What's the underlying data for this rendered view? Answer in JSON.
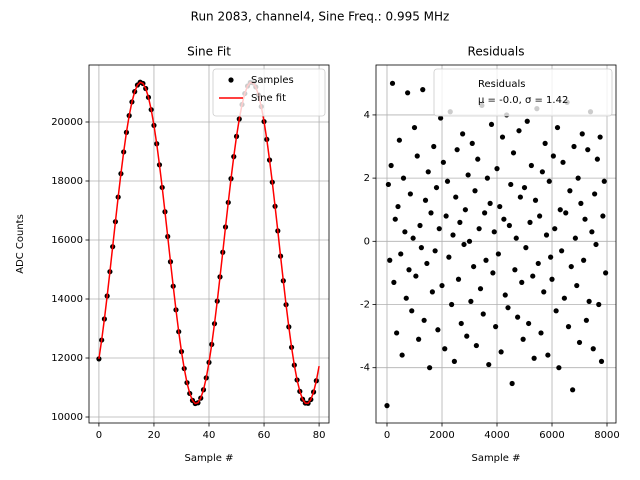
{
  "title": "Run 2083, channel4, Sine Freq.: 0.995 MHz",
  "chart_data": [
    {
      "type": "line",
      "title": "Sine Fit",
      "xlabel": "Sample #",
      "ylabel": "ADC Counts",
      "xlim": [
        -3.6,
        83.6
      ],
      "ylim": [
        9797,
        21932
      ],
      "xticks": [
        0,
        20,
        40,
        60,
        80
      ],
      "yticks": [
        10000,
        12000,
        14000,
        16000,
        18000,
        20000
      ],
      "grid": true,
      "legend": "upper right",
      "series": [
        {
          "name": "Samples",
          "color": "#000000",
          "style": "markers",
          "x": [
            0,
            1,
            2,
            3,
            4,
            5,
            6,
            7,
            8,
            9,
            10,
            11,
            12,
            13,
            14,
            15,
            16,
            17,
            18,
            19,
            20,
            21,
            22,
            23,
            24,
            25,
            26,
            27,
            28,
            29,
            30,
            31,
            32,
            33,
            34,
            35,
            36,
            37,
            38,
            39,
            40,
            41,
            42,
            43,
            44,
            45,
            46,
            47,
            48,
            49,
            50,
            51,
            52,
            53,
            54,
            55,
            56,
            57,
            58,
            59,
            60,
            61,
            62,
            63,
            64,
            65,
            66,
            67,
            68,
            69,
            70,
            71,
            72,
            73,
            74,
            75,
            76,
            77,
            78,
            79
          ],
          "values": [
            11970,
            12608,
            13323,
            14102,
            14925,
            15774,
            16621,
            17455,
            18249,
            18985,
            19648,
            20216,
            20680,
            21029,
            21253,
            21347,
            21306,
            21136,
            20836,
            20418,
            19886,
            19263,
            18549,
            17781,
            16957,
            16118,
            15262,
            14434,
            13633,
            12892,
            12216,
            11643,
            11164,
            10799,
            10564,
            10456,
            10483,
            10641,
            10924,
            11327,
            11851,
            12461,
            13164,
            13927,
            14750,
            15584,
            16440,
            17273,
            18080,
            18827,
            19513,
            20102,
            20592,
            20963,
            21219,
            21339,
            21328,
            21187,
            20914,
            20522,
            20015,
            19410,
            18712,
            17960,
            17143,
            16309,
            15453,
            14619,
            13807,
            13055,
            12363,
            11758,
            11257,
            10870,
            10603,
            10472,
            10466,
            10592,
            10848,
            11229
          ]
        },
        {
          "name": "Sine fit",
          "color": "#ff0000",
          "style": "line",
          "x": [
            0,
            1,
            2,
            3,
            4,
            5,
            6,
            7,
            8,
            9,
            10,
            11,
            12,
            13,
            14,
            15,
            16,
            17,
            18,
            19,
            20,
            21,
            22,
            23,
            24,
            25,
            26,
            27,
            28,
            29,
            30,
            31,
            32,
            33,
            34,
            35,
            36,
            37,
            38,
            39,
            40,
            41,
            42,
            43,
            44,
            45,
            46,
            47,
            48,
            49,
            50,
            51,
            52,
            53,
            54,
            55,
            56,
            57,
            58,
            59,
            60,
            61,
            62,
            63,
            64,
            65,
            66,
            67,
            68,
            69,
            70,
            71,
            72,
            73,
            74,
            75,
            76,
            77,
            78,
            79,
            80
          ],
          "values": [
            11970,
            12608,
            13323,
            14102,
            14925,
            15774,
            16621,
            17455,
            18249,
            18985,
            19648,
            20216,
            20680,
            21029,
            21253,
            21347,
            21306,
            21136,
            20836,
            20418,
            19886,
            19263,
            18549,
            17781,
            16957,
            16118,
            15262,
            14434,
            13633,
            12892,
            12216,
            11643,
            11164,
            10799,
            10564,
            10456,
            10483,
            10641,
            10924,
            11327,
            11851,
            12461,
            13164,
            13927,
            14750,
            15584,
            16440,
            17273,
            18080,
            18827,
            19513,
            20102,
            20592,
            20963,
            21219,
            21339,
            21328,
            21187,
            20914,
            20522,
            20015,
            19410,
            18712,
            17960,
            17143,
            16309,
            15453,
            14619,
            13807,
            13055,
            12363,
            11758,
            11257,
            10870,
            10603,
            10472,
            10466,
            10592,
            10848,
            11229,
            11725
          ]
        }
      ]
    },
    {
      "type": "scatter",
      "title": "Residuals",
      "xlabel": "Sample #",
      "xlim": [
        -400,
        8327
      ],
      "ylim": [
        -5.75,
        5.58
      ],
      "xticks": [
        0,
        2000,
        4000,
        6000,
        8000
      ],
      "yticks": [
        -4,
        -2,
        0,
        2,
        4
      ],
      "grid": true,
      "legend": "upper right",
      "legend_note": "μ = -0.0, σ = 1.42",
      "series": [
        {
          "name": "Residuals",
          "color": "#000000",
          "style": "markers",
          "x": [
            0,
            50,
            100,
            150,
            200,
            250,
            300,
            350,
            400,
            450,
            500,
            550,
            600,
            650,
            700,
            750,
            800,
            850,
            900,
            950,
            1000,
            1050,
            1100,
            1150,
            1200,
            1250,
            1300,
            1350,
            1400,
            1450,
            1500,
            1550,
            1600,
            1650,
            1700,
            1750,
            1800,
            1850,
            1900,
            1950,
            2000,
            2050,
            2100,
            2150,
            2200,
            2250,
            2300,
            2350,
            2400,
            2450,
            2500,
            2550,
            2600,
            2650,
            2700,
            2750,
            2800,
            2850,
            2900,
            2950,
            3000,
            3050,
            3100,
            3150,
            3200,
            3250,
            3300,
            3350,
            3400,
            3450,
            3500,
            3550,
            3600,
            3650,
            3700,
            3750,
            3800,
            3850,
            3900,
            3950,
            4000,
            4050,
            4100,
            4150,
            4200,
            4250,
            4300,
            4350,
            4400,
            4450,
            4500,
            4550,
            4600,
            4650,
            4700,
            4750,
            4800,
            4850,
            4900,
            4950,
            5000,
            5050,
            5100,
            5150,
            5200,
            5250,
            5300,
            5350,
            5400,
            5450,
            5500,
            5550,
            5600,
            5650,
            5700,
            5750,
            5800,
            5850,
            5900,
            5950,
            6000,
            6050,
            6100,
            6150,
            6200,
            6250,
            6300,
            6350,
            6400,
            6450,
            6500,
            6550,
            6600,
            6650,
            6700,
            6750,
            6800,
            6850,
            6900,
            6950,
            7000,
            7050,
            7100,
            7150,
            7200,
            7250,
            7300,
            7350,
            7400,
            7450,
            7500,
            7550,
            7600,
            7650,
            7700,
            7750,
            7800,
            7850,
            7900,
            7950
          ],
          "values": [
            -5.2,
            1.8,
            -0.6,
            2.4,
            5.0,
            -1.3,
            0.7,
            -2.9,
            1.1,
            3.2,
            -0.4,
            -3.6,
            2.0,
            0.3,
            -1.8,
            4.7,
            -0.9,
            1.5,
            -2.2,
            0.1,
            3.6,
            -1.1,
            2.7,
            -3.1,
            0.5,
            -0.2,
            4.8,
            -2.5,
            1.3,
            -0.7,
            2.2,
            -4.0,
            0.9,
            -1.6,
            3.0,
            -0.3,
            1.7,
            -2.8,
            0.4,
            3.9,
            -1.4,
            2.5,
            -3.4,
            0.8,
            1.9,
            -0.5,
            4.1,
            -2.0,
            0.2,
            -3.8,
            1.4,
            2.9,
            -1.2,
            0.6,
            -2.6,
            3.4,
            -0.1,
            1.0,
            -3.0,
            2.1,
            0.0,
            -1.9,
            3.1,
            -0.8,
            1.6,
            -3.3,
            2.6,
            0.4,
            -1.5,
            4.3,
            -2.3,
            0.9,
            -0.6,
            2.0,
            -3.9,
            1.2,
            3.7,
            -1.0,
            0.3,
            -2.7,
            2.3,
            -0.4,
            1.1,
            -3.5,
            3.3,
            0.7,
            -1.7,
            4.0,
            -2.1,
            0.5,
            1.8,
            -4.5,
            2.8,
            -0.9,
            0.1,
            -2.4,
            3.5,
            1.4,
            -1.3,
            -3.1,
            1.7,
            -0.2,
            3.8,
            -2.6,
            0.6,
            2.4,
            -1.1,
            -3.7,
            1.3,
            4.2,
            -0.7,
            0.8,
            -2.9,
            2.2,
            -1.6,
            3.1,
            0.2,
            -3.6,
            1.9,
            -0.5,
            -1.2,
            2.7,
            0.4,
            -2.2,
            3.6,
            -4.0,
            1.0,
            -0.3,
            2.5,
            -1.8,
            0.9,
            4.4,
            -2.7,
            1.6,
            -0.8,
            -4.7,
            3.0,
            0.1,
            -1.4,
            2.0,
            -3.2,
            1.2,
            3.4,
            -0.6,
            0.7,
            -2.5,
            2.9,
            -1.9,
            4.1,
            0.3,
            -3.4,
            1.5,
            -0.1,
            2.6,
            -2.0,
            3.3,
            -3.8,
            0.8,
            1.9,
            -1.0
          ]
        }
      ]
    }
  ]
}
